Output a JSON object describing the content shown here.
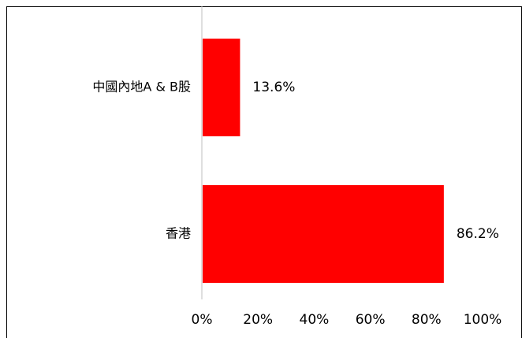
{
  "chart_data": {
    "type": "bar",
    "orientation": "horizontal",
    "categories": [
      "中國內地A & B股",
      "香港"
    ],
    "values": [
      13.6,
      86.2
    ],
    "data_labels": [
      "13.6%",
      "86.2%"
    ],
    "xlim": [
      0,
      100
    ],
    "xticks": [
      "0%",
      "20%",
      "40%",
      "60%",
      "80%",
      "100%"
    ],
    "title": "",
    "xlabel": "",
    "ylabel": "",
    "grid": false,
    "legend": "none",
    "bar_color": "#ff0000"
  }
}
